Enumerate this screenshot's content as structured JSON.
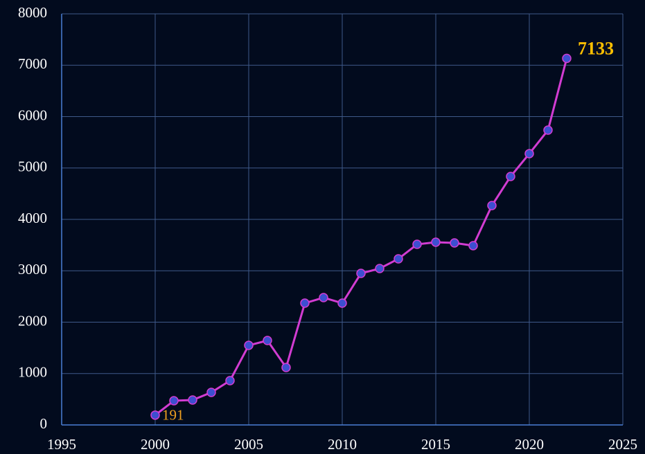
{
  "chart_data": {
    "type": "line",
    "x": [
      2000,
      2001,
      2002,
      2003,
      2004,
      2005,
      2006,
      2007,
      2008,
      2009,
      2010,
      2011,
      2012,
      2013,
      2014,
      2015,
      2016,
      2017,
      2018,
      2019,
      2020,
      2021,
      2022
    ],
    "series": [
      {
        "name": null,
        "color": "#d23cd2",
        "marker_color": "#3d4fd0",
        "values": [
          191,
          471,
          485,
          633,
          862,
          1549,
          1643,
          1118,
          2370,
          2478,
          2370,
          2949,
          3044,
          3232,
          3515,
          3556,
          3542,
          3488,
          4269,
          4835,
          5279,
          5737,
          7133
        ],
        "value_labels": [
          "191",
          null,
          null,
          null,
          null,
          null,
          null,
          null,
          null,
          null,
          null,
          null,
          null,
          null,
          null,
          null,
          null,
          null,
          null,
          null,
          null,
          null,
          "7133"
        ]
      }
    ],
    "xlim": [
      1995,
      2025
    ],
    "xticks": [
      1995,
      2000,
      2005,
      2010,
      2015,
      2020,
      2025
    ],
    "ylim": [
      0,
      8000
    ],
    "yticks": [
      0,
      1000,
      2000,
      3000,
      4000,
      5000,
      6000,
      7000,
      8000
    ],
    "grid": true
  }
}
